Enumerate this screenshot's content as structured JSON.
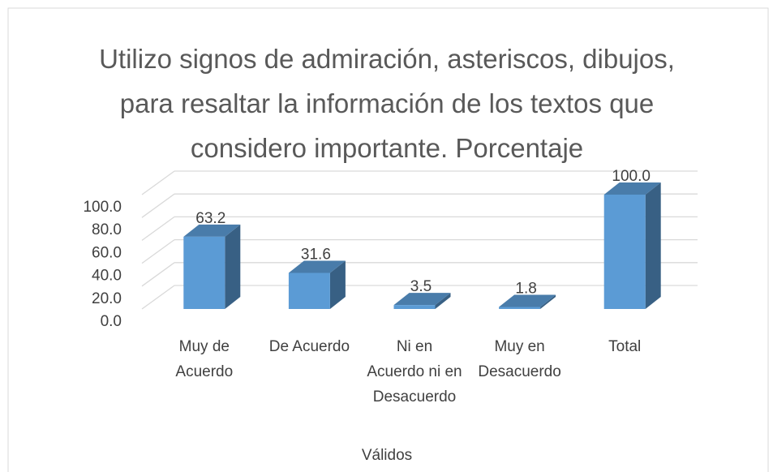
{
  "chart_data": {
    "type": "bar3d",
    "title": "Utilizo signos de admiración, asteriscos, dibujos, para resaltar la información de los textos que considero importante. Porcentaje",
    "categories": [
      "Muy de Acuerdo",
      "De Acuerdo",
      "Ni en Acuerdo ni en Desacuerdo",
      "Muy en Desacuerdo",
      "Total"
    ],
    "values": [
      63.2,
      31.6,
      3.5,
      1.8,
      100
    ],
    "value_labels": [
      "63.2",
      "31.6",
      "3.5",
      "1.8",
      "100.0"
    ],
    "color": "#5b9bd5",
    "xlabel": "Válidos",
    "ylim": [
      0,
      100
    ],
    "yticks": [
      {
        "value": 0,
        "label": "0.0"
      },
      {
        "value": 20,
        "label": "20.0"
      },
      {
        "value": 40,
        "label": "40.0"
      },
      {
        "value": 60,
        "label": "60.0"
      },
      {
        "value": 80,
        "label": "80.0"
      },
      {
        "value": 100,
        "label": "100.0"
      }
    ],
    "grid": true
  }
}
